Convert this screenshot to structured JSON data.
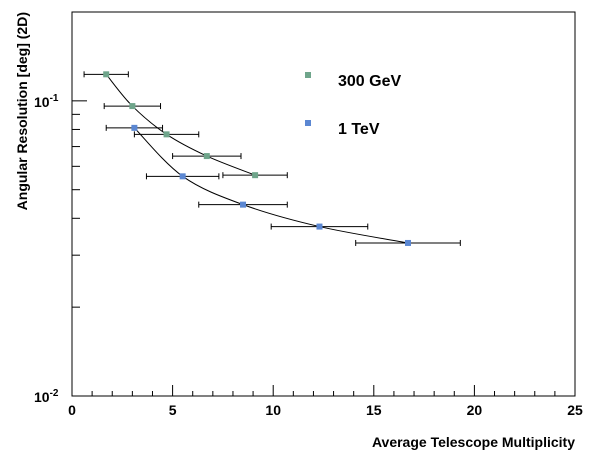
{
  "chart_data": {
    "type": "scatter",
    "xlabel": "Average Telescope Multiplicity",
    "ylabel": "Angular Resolution [deg] (2D)",
    "xlim": [
      0,
      25
    ],
    "ylim": [
      0.01,
      0.2
    ],
    "yscale": "log",
    "x_ticks": [
      0,
      5,
      10,
      15,
      20,
      25
    ],
    "x_tick_labels": [
      "0",
      "5",
      "10",
      "15",
      "20",
      "25"
    ],
    "y_major_ticks": [
      0.01,
      0.1
    ],
    "y_tick_labels": [
      {
        "value": 0.01,
        "base": "10",
        "exp": "-2"
      },
      {
        "value": 0.1,
        "base": "10",
        "exp": "-1"
      }
    ],
    "grid": false,
    "legend_position": "top-right",
    "series": [
      {
        "name": "300 GeV",
        "color": "#6fa58b",
        "points": [
          {
            "x": 1.7,
            "y": 0.123,
            "xerr": 1.1
          },
          {
            "x": 3.0,
            "y": 0.096,
            "xerr": 1.4
          },
          {
            "x": 4.7,
            "y": 0.077,
            "xerr": 1.6
          },
          {
            "x": 6.7,
            "y": 0.065,
            "xerr": 1.7
          },
          {
            "x": 9.1,
            "y": 0.056,
            "xerr": 1.6
          }
        ]
      },
      {
        "name": "1 TeV",
        "color": "#5b87d2",
        "points": [
          {
            "x": 3.1,
            "y": 0.081,
            "xerr": 1.4
          },
          {
            "x": 5.5,
            "y": 0.0555,
            "xerr": 1.8
          },
          {
            "x": 8.5,
            "y": 0.0445,
            "xerr": 2.2
          },
          {
            "x": 12.3,
            "y": 0.0375,
            "xerr": 2.4
          },
          {
            "x": 16.7,
            "y": 0.033,
            "xerr": 2.6
          }
        ]
      }
    ]
  }
}
